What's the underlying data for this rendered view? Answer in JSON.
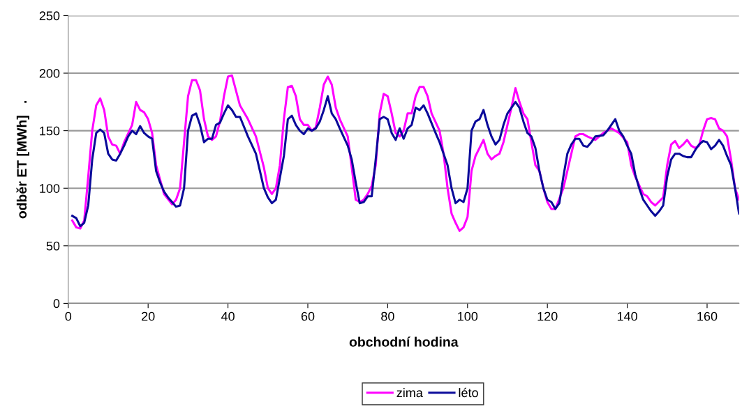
{
  "chart_data": {
    "type": "line",
    "xlabel": "obchodní hodina",
    "ylabel": "odběr ET [MWh]   .",
    "xlim": [
      0,
      168
    ],
    "xticks": [
      0,
      20,
      40,
      60,
      80,
      100,
      120,
      140,
      160
    ],
    "ylim": [
      0,
      250
    ],
    "yticks": [
      0,
      50,
      100,
      150,
      200,
      250
    ],
    "grid": "y",
    "legend": "bottom",
    "marker": "none",
    "line_style": "solid",
    "series": [
      {
        "name": "zima",
        "color": "#ff00ff",
        "x": [
          1,
          2,
          3,
          4,
          5,
          6,
          7,
          8,
          9,
          10,
          11,
          12,
          13,
          14,
          16,
          17,
          18,
          19,
          20,
          21,
          22,
          24,
          26,
          27,
          28,
          29,
          30,
          31,
          32,
          33,
          34,
          35,
          36,
          37,
          38,
          39,
          40,
          41,
          42,
          43,
          45,
          47,
          49,
          50,
          51,
          52,
          53,
          54,
          55,
          56,
          57,
          58,
          59,
          60,
          61,
          62,
          63,
          64,
          65,
          66,
          67,
          68,
          70,
          71,
          72,
          73,
          74,
          75,
          76,
          77,
          78,
          79,
          80,
          81,
          82,
          83,
          84,
          85,
          86,
          87,
          88,
          89,
          90,
          91,
          93,
          94,
          95,
          96,
          97,
          98,
          99,
          100,
          101,
          102,
          103,
          104,
          105,
          106,
          107,
          108,
          109,
          110,
          111,
          112,
          113,
          114,
          115,
          116,
          117,
          118,
          119,
          120,
          121,
          122,
          124,
          126,
          127,
          128,
          129,
          130,
          132,
          134,
          136,
          137,
          138,
          140,
          141,
          142,
          144,
          145,
          146,
          147,
          149,
          150,
          151,
          152,
          153,
          154,
          155,
          156,
          157,
          158,
          159,
          160,
          161,
          162,
          163,
          164,
          165,
          166,
          167,
          168
        ],
        "values": [
          72,
          66,
          65,
          72,
          110,
          150,
          172,
          178,
          168,
          145,
          138,
          137,
          130,
          140,
          155,
          175,
          168,
          166,
          160,
          148,
          120,
          95,
          86,
          90,
          100,
          140,
          180,
          194,
          194,
          185,
          160,
          145,
          142,
          145,
          158,
          180,
          197,
          198,
          185,
          172,
          160,
          145,
          118,
          100,
          95,
          100,
          120,
          160,
          188,
          189,
          180,
          160,
          155,
          155,
          150,
          153,
          170,
          190,
          197,
          190,
          170,
          160,
          145,
          118,
          90,
          88,
          90,
          95,
          102,
          120,
          165,
          182,
          180,
          165,
          148,
          145,
          150,
          165,
          165,
          180,
          188,
          188,
          180,
          165,
          150,
          130,
          100,
          78,
          70,
          63,
          66,
          75,
          115,
          128,
          135,
          142,
          130,
          125,
          128,
          130,
          140,
          155,
          170,
          187,
          175,
          165,
          160,
          140,
          120,
          115,
          100,
          88,
          82,
          82,
          100,
          130,
          145,
          147,
          147,
          145,
          142,
          148,
          152,
          150,
          148,
          140,
          120,
          110,
          95,
          93,
          88,
          85,
          92,
          120,
          138,
          141,
          135,
          138,
          142,
          137,
          135,
          137,
          150,
          160,
          161,
          160,
          152,
          150,
          145,
          125,
          100,
          90
        ]
      },
      {
        "name": "léto",
        "color": "#0a0a9a",
        "x": [
          1,
          2,
          3,
          4,
          5,
          6,
          7,
          8,
          9,
          10,
          11,
          12,
          13,
          14,
          15,
          16,
          17,
          18,
          19,
          20,
          21,
          22,
          23,
          24,
          25,
          26,
          27,
          28,
          29,
          30,
          31,
          32,
          33,
          34,
          35,
          36,
          37,
          38,
          39,
          40,
          41,
          42,
          43,
          45,
          47,
          48,
          49,
          50,
          51,
          52,
          54,
          55,
          56,
          57,
          58,
          59,
          60,
          61,
          62,
          63,
          64,
          65,
          66,
          67,
          68,
          70,
          71,
          72,
          73,
          74,
          75,
          76,
          77,
          78,
          79,
          80,
          81,
          82,
          83,
          84,
          85,
          86,
          87,
          88,
          89,
          90,
          92,
          93,
          95,
          96,
          97,
          98,
          99,
          100,
          101,
          102,
          103,
          104,
          105,
          106,
          107,
          108,
          109,
          110,
          111,
          112,
          113,
          114,
          115,
          116,
          117,
          118,
          119,
          120,
          121,
          122,
          123,
          124,
          125,
          126,
          127,
          128,
          129,
          130,
          131,
          132,
          134,
          135,
          136,
          137,
          138,
          139,
          140,
          141,
          142,
          143,
          144,
          145,
          146,
          147,
          148,
          149,
          150,
          151,
          152,
          153,
          154,
          155,
          156,
          157,
          158,
          159,
          160,
          161,
          162,
          163,
          164,
          165,
          166,
          167,
          168
        ],
        "values": [
          76,
          74,
          67,
          70,
          85,
          125,
          148,
          151,
          148,
          130,
          125,
          124,
          130,
          137,
          145,
          150,
          147,
          154,
          148,
          145,
          143,
          115,
          105,
          97,
          92,
          88,
          84,
          85,
          100,
          150,
          163,
          165,
          155,
          140,
          143,
          143,
          155,
          157,
          165,
          172,
          168,
          162,
          162,
          145,
          130,
          115,
          100,
          92,
          87,
          90,
          128,
          160,
          163,
          155,
          150,
          147,
          152,
          150,
          152,
          158,
          168,
          180,
          165,
          160,
          152,
          137,
          125,
          105,
          87,
          88,
          93,
          93,
          125,
          160,
          162,
          160,
          148,
          142,
          152,
          143,
          152,
          155,
          170,
          168,
          172,
          165,
          148,
          140,
          120,
          100,
          87,
          90,
          88,
          100,
          150,
          158,
          160,
          168,
          155,
          145,
          138,
          142,
          155,
          165,
          170,
          175,
          170,
          158,
          148,
          145,
          135,
          115,
          100,
          90,
          88,
          82,
          87,
          110,
          130,
          138,
          143,
          143,
          137,
          136,
          140,
          145,
          146,
          150,
          155,
          160,
          150,
          145,
          137,
          130,
          112,
          100,
          90,
          85,
          80,
          76,
          80,
          85,
          110,
          125,
          130,
          130,
          128,
          127,
          127,
          133,
          138,
          141,
          140,
          134,
          137,
          142,
          137,
          128,
          120,
          100,
          78
        ]
      }
    ]
  }
}
